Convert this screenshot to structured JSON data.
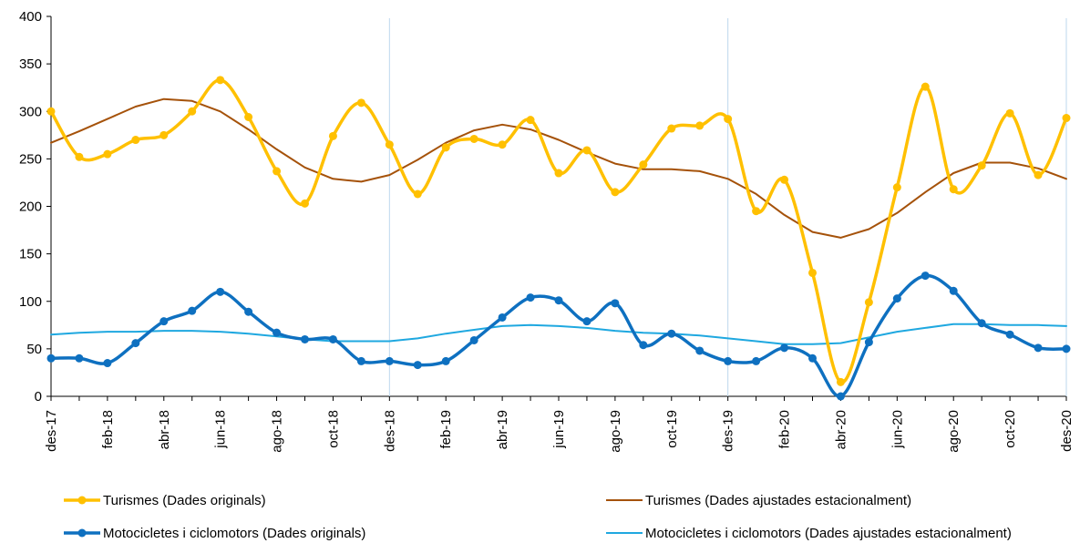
{
  "chart_data": {
    "type": "line",
    "x_ticks": [
      "des-17",
      "feb-18",
      "abr-18",
      "jun-18",
      "ago-18",
      "oct-18",
      "des-18",
      "feb-19",
      "abr-19",
      "jun-19",
      "ago-19",
      "oct-19",
      "des-19",
      "feb-20",
      "abr-20",
      "jun-20",
      "ago-20",
      "oct-20",
      "des-20"
    ],
    "ylim": [
      0,
      400
    ],
    "y_ticks": [
      0,
      50,
      100,
      150,
      200,
      250,
      300,
      350,
      400
    ],
    "grid": false,
    "year_dividers_at_month_index": [
      12,
      24,
      36
    ],
    "legend_position": "bottom",
    "series": [
      {
        "name": "Turismes (Dades originals)",
        "color": "#FFC000",
        "style": "smooth-line-with-markers",
        "values": [
          300,
          252,
          255,
          270,
          275,
          300,
          333,
          294,
          237,
          203,
          274,
          309,
          265,
          213,
          262,
          271,
          265,
          291,
          235,
          259,
          215,
          244,
          282,
          285,
          292,
          195,
          228,
          130,
          15,
          99,
          220,
          326,
          218,
          243,
          298,
          233,
          293
        ]
      },
      {
        "name": "Turismes (Dades ajustades estacionalment)",
        "color": "#A5520A",
        "style": "line",
        "values": [
          267,
          279,
          292,
          305,
          313,
          311,
          300,
          281,
          260,
          241,
          229,
          226,
          233,
          249,
          267,
          280,
          286,
          281,
          270,
          257,
          245,
          239,
          239,
          237,
          229,
          213,
          191,
          173,
          167,
          176,
          193,
          215,
          235,
          246,
          246,
          240,
          229
        ]
      },
      {
        "name": "Motocicletes i ciclomotors (Dades originals)",
        "color": "#0E70C0",
        "style": "smooth-line-with-markers",
        "values": [
          40,
          40,
          35,
          56,
          79,
          90,
          110,
          89,
          67,
          60,
          60,
          37,
          37,
          33,
          37,
          59,
          83,
          104,
          101,
          79,
          98,
          54,
          66,
          48,
          37,
          37,
          51,
          40,
          0,
          57,
          103,
          127,
          111,
          77,
          65,
          51,
          50
        ]
      },
      {
        "name": "Motocicletes i ciclomotors (Dades ajustades estacionalment)",
        "color": "#1FA8E0",
        "style": "line",
        "values": [
          65,
          67,
          68,
          68,
          69,
          69,
          68,
          66,
          63,
          60,
          58,
          58,
          58,
          61,
          66,
          70,
          74,
          75,
          74,
          72,
          69,
          67,
          66,
          64,
          61,
          58,
          55,
          55,
          56,
          62,
          68,
          72,
          76,
          76,
          75,
          75,
          74
        ]
      }
    ]
  }
}
